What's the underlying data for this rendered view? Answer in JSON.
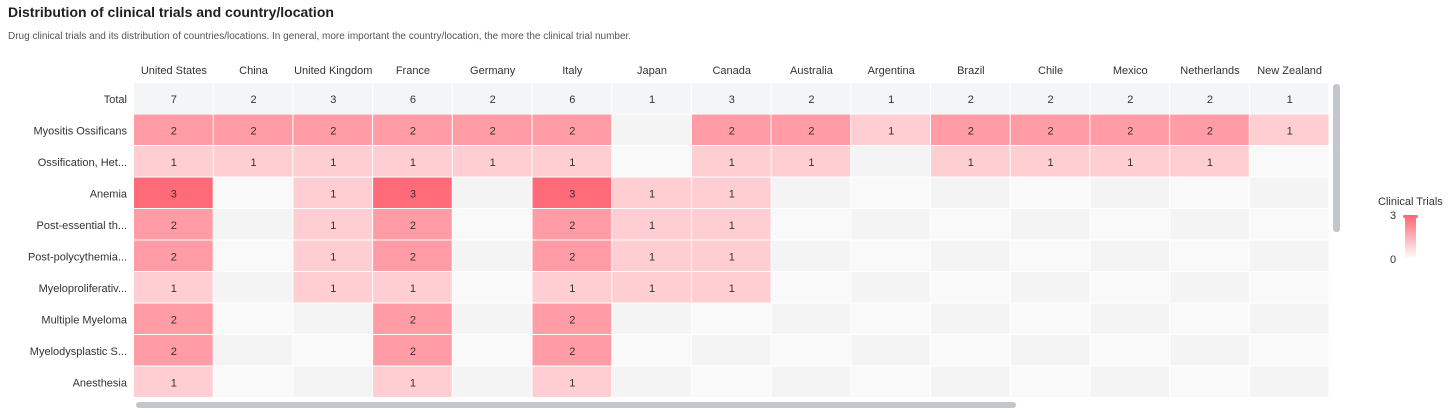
{
  "header": {
    "title": "Distribution of clinical trials and country/location",
    "subtitle": "Drug clinical trials and its distribution of countries/locations. In general, more important the country/location, the more the clinical trial number."
  },
  "legend": {
    "title": "Clinical Trials",
    "max": "3",
    "min": "0"
  },
  "colors": {
    "high": "#ff6b78",
    "low": "#ffffff",
    "empty_a": "#f4f4f5",
    "empty_b": "#f9f9fa",
    "scrollbar": "#c3c6cc"
  },
  "chart_data": {
    "type": "heatmap",
    "title": "Distribution of clinical trials and country/location",
    "x": [
      "United States",
      "China",
      "United Kingdom",
      "France",
      "Germany",
      "Italy",
      "Japan",
      "Canada",
      "Australia",
      "Argentina",
      "Brazil",
      "Chile",
      "Mexico",
      "Netherlands",
      "New Zealand"
    ],
    "y": [
      "Total",
      "Myositis Ossificans",
      "Ossification, Het...",
      "Anemia",
      "Post-essential th...",
      "Post-polycythemia...",
      "Myeloproliferativ...",
      "Multiple Myeloma",
      "Myelodysplastic S...",
      "Anesthesia"
    ],
    "values": [
      [
        7,
        2,
        3,
        6,
        2,
        6,
        1,
        3,
        2,
        1,
        2,
        2,
        2,
        2,
        1
      ],
      [
        2,
        2,
        2,
        2,
        2,
        2,
        null,
        2,
        2,
        1,
        2,
        2,
        2,
        2,
        1
      ],
      [
        1,
        1,
        1,
        1,
        1,
        1,
        null,
        1,
        1,
        null,
        1,
        1,
        1,
        1,
        null
      ],
      [
        3,
        null,
        1,
        3,
        null,
        3,
        1,
        1,
        null,
        null,
        null,
        null,
        null,
        null,
        null
      ],
      [
        2,
        null,
        1,
        2,
        null,
        2,
        1,
        1,
        null,
        null,
        null,
        null,
        null,
        null,
        null
      ],
      [
        2,
        null,
        1,
        2,
        null,
        2,
        1,
        1,
        null,
        null,
        null,
        null,
        null,
        null,
        null
      ],
      [
        1,
        null,
        1,
        1,
        null,
        1,
        1,
        1,
        null,
        null,
        null,
        null,
        null,
        null,
        null
      ],
      [
        2,
        null,
        null,
        2,
        null,
        2,
        null,
        null,
        null,
        null,
        null,
        null,
        null,
        null,
        null
      ],
      [
        2,
        null,
        null,
        2,
        null,
        2,
        null,
        null,
        null,
        null,
        null,
        null,
        null,
        null,
        null
      ],
      [
        1,
        null,
        null,
        1,
        null,
        1,
        null,
        null,
        null,
        null,
        null,
        null,
        null,
        null,
        null
      ]
    ],
    "color_range": [
      0,
      3
    ],
    "total_row_color": "#f4f5f7",
    "legend": "right"
  }
}
